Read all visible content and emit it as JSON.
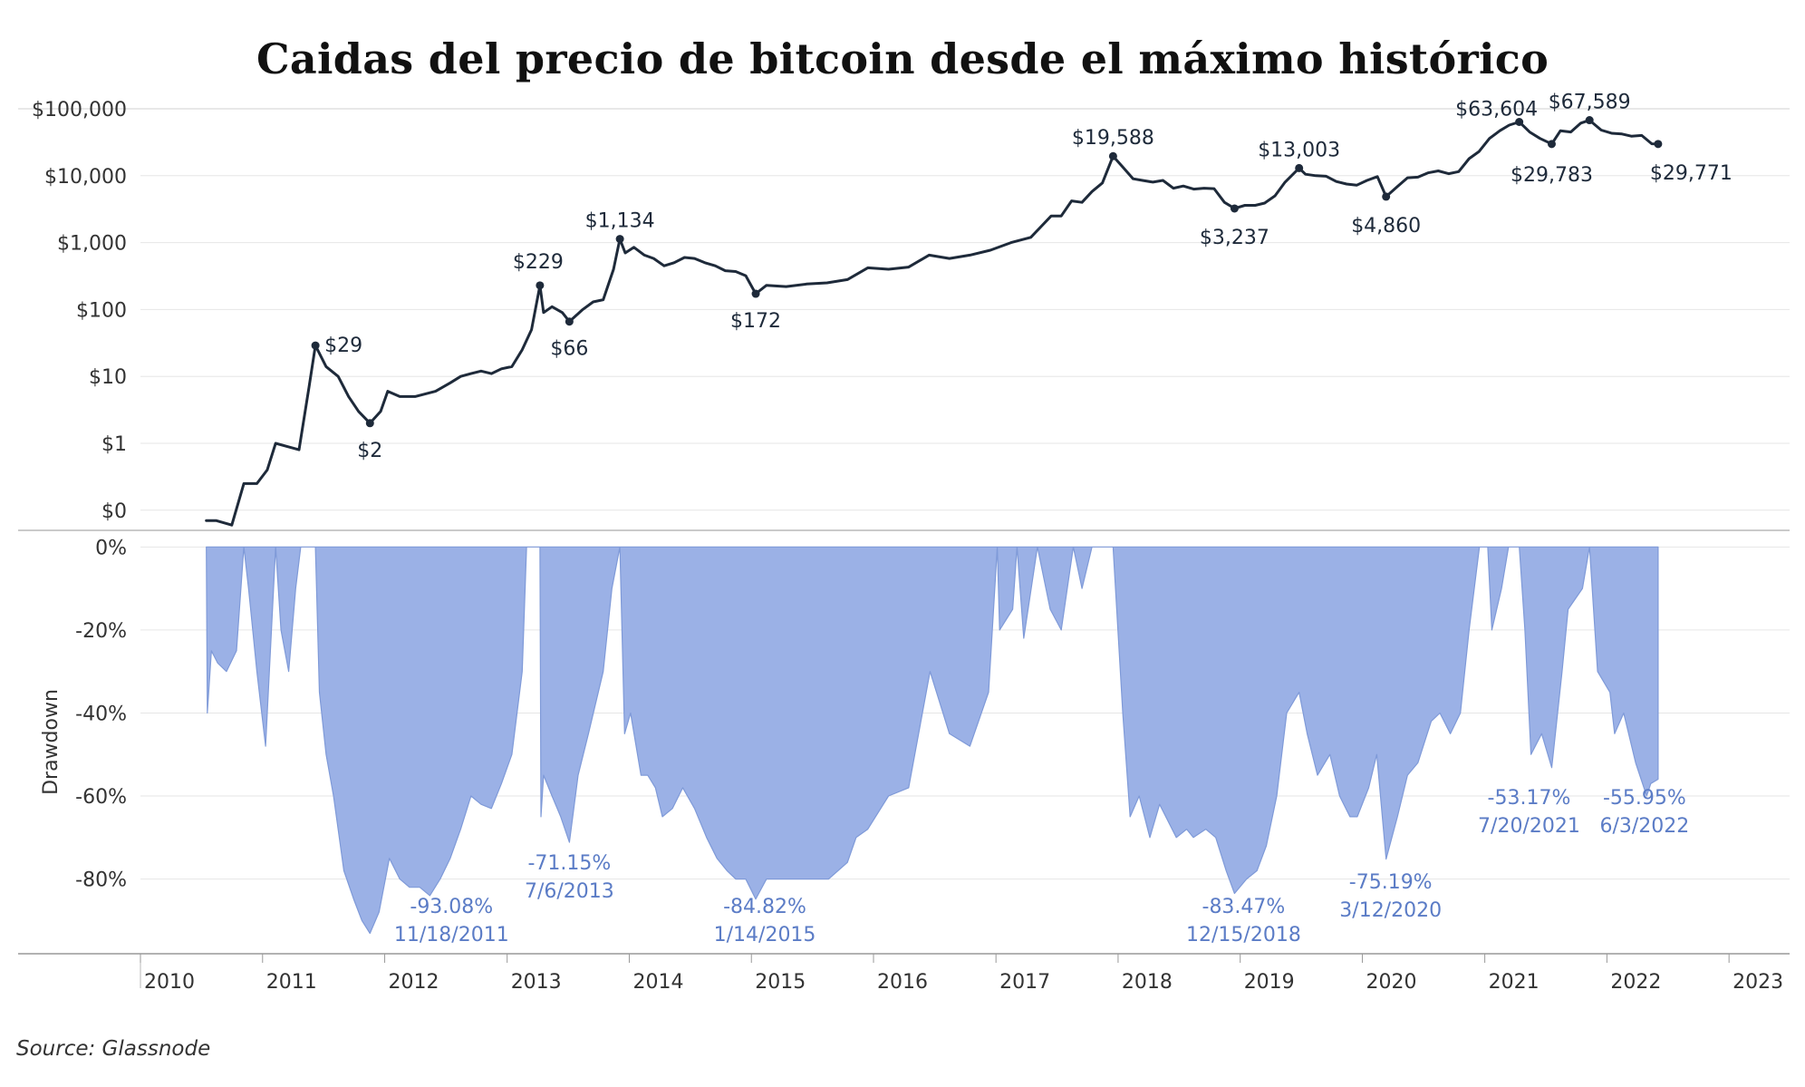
{
  "title": "Caidas del precio de bitcoin desde el máximo histórico",
  "source": "Source: Glassnode",
  "colors": {
    "price_line": "#1e2a3a",
    "drawdown_fill": "#9bb1e6",
    "drawdown_stroke": "#7f9ad8",
    "annotation_blue": "#5b7cc6",
    "grid": "#e6e6e6"
  },
  "chart_data": [
    {
      "type": "line",
      "title": "",
      "xlabel": "",
      "ylabel": "",
      "y_scale": "log",
      "ylim": [
        0.05,
        100000
      ],
      "y_ticks": [
        {
          "value": 100000,
          "label": "$100,000"
        },
        {
          "value": 10000,
          "label": "$10,000"
        },
        {
          "value": 1000,
          "label": "$1,000"
        },
        {
          "value": 100,
          "label": "$100"
        },
        {
          "value": 10,
          "label": "$10"
        },
        {
          "value": 1,
          "label": "$1"
        },
        {
          "value": 0.1,
          "label": "$0"
        }
      ],
      "grid": true,
      "series": [
        {
          "x": [
            "2010-07-17",
            "2010-08-15",
            "2010-10-01",
            "2010-11-06",
            "2010-12-15",
            "2011-01-15",
            "2011-02-09",
            "2011-03-15",
            "2011-04-20",
            "2011-05-20",
            "2011-06-08",
            "2011-07-10",
            "2011-08-15",
            "2011-09-15",
            "2011-10-15",
            "2011-11-18",
            "2011-12-20",
            "2012-01-10",
            "2012-02-15",
            "2012-04-01",
            "2012-06-01",
            "2012-07-15",
            "2012-08-15",
            "2012-09-15",
            "2012-10-15",
            "2012-11-15",
            "2012-12-15",
            "2013-01-15",
            "2013-02-15",
            "2013-03-15",
            "2013-04-09",
            "2013-04-20",
            "2013-05-15",
            "2013-06-15",
            "2013-07-06",
            "2013-08-15",
            "2013-09-15",
            "2013-10-15",
            "2013-11-15",
            "2013-12-04",
            "2013-12-20",
            "2014-01-15",
            "2014-02-15",
            "2014-03-15",
            "2014-04-15",
            "2014-05-15",
            "2014-06-15",
            "2014-07-15",
            "2014-08-15",
            "2014-09-15",
            "2014-10-15",
            "2014-11-15",
            "2014-12-15",
            "2015-01-14",
            "2015-02-15",
            "2015-04-15",
            "2015-06-15",
            "2015-08-15",
            "2015-10-15",
            "2015-12-15",
            "2016-02-15",
            "2016-04-15",
            "2016-06-15",
            "2016-08-15",
            "2016-10-15",
            "2016-12-15",
            "2017-02-15",
            "2017-04-15",
            "2017-06-15",
            "2017-07-15",
            "2017-08-15",
            "2017-09-15",
            "2017-10-15",
            "2017-11-15",
            "2017-12-17",
            "2018-01-15",
            "2018-02-15",
            "2018-03-15",
            "2018-04-15",
            "2018-05-15",
            "2018-06-15",
            "2018-07-15",
            "2018-08-15",
            "2018-09-15",
            "2018-10-15",
            "2018-11-15",
            "2018-12-15",
            "2019-01-15",
            "2019-02-15",
            "2019-03-15",
            "2019-04-15",
            "2019-05-15",
            "2019-06-26",
            "2019-07-15",
            "2019-08-15",
            "2019-09-15",
            "2019-10-15",
            "2019-11-15",
            "2019-12-15",
            "2020-01-15",
            "2020-02-15",
            "2020-03-12",
            "2020-04-15",
            "2020-05-15",
            "2020-06-15",
            "2020-07-15",
            "2020-08-15",
            "2020-09-15",
            "2020-10-15",
            "2020-11-15",
            "2020-12-15",
            "2021-01-15",
            "2021-02-15",
            "2021-03-15",
            "2021-04-14",
            "2021-05-15",
            "2021-06-15",
            "2021-07-20",
            "2021-08-15",
            "2021-09-15",
            "2021-10-15",
            "2021-11-10",
            "2021-12-15",
            "2022-01-15",
            "2022-02-15",
            "2022-03-15",
            "2022-04-15",
            "2022-05-15",
            "2022-06-03"
          ],
          "values": [
            0.07,
            0.07,
            0.06,
            0.25,
            0.25,
            0.4,
            1.0,
            0.9,
            0.8,
            7,
            29,
            14,
            10,
            5,
            3,
            2,
            3,
            6,
            5,
            5,
            6,
            8,
            10,
            11,
            12,
            11,
            13,
            14,
            25,
            50,
            229,
            90,
            110,
            90,
            66,
            100,
            130,
            140,
            400,
            1134,
            700,
            850,
            650,
            580,
            450,
            500,
            600,
            580,
            500,
            450,
            380,
            370,
            320,
            172,
            230,
            220,
            240,
            250,
            280,
            420,
            400,
            430,
            650,
            580,
            650,
            770,
            1000,
            1200,
            2500,
            2500,
            4200,
            4000,
            5800,
            7800,
            19588,
            13500,
            9000,
            8500,
            8000,
            8500,
            6500,
            7000,
            6300,
            6500,
            6400,
            4000,
            3237,
            3600,
            3600,
            3900,
            5000,
            8000,
            13003,
            10500,
            10000,
            9800,
            8200,
            7500,
            7200,
            8500,
            9700,
            4860,
            6900,
            9300,
            9500,
            11000,
            11800,
            10700,
            11500,
            18000,
            23000,
            36000,
            47000,
            57000,
            63604,
            45000,
            36000,
            29783,
            47000,
            45000,
            61000,
            67589,
            48000,
            43000,
            42000,
            39000,
            40000,
            30000,
            29771
          ]
        }
      ],
      "annotations": [
        {
          "x": "2011-06-08",
          "y": 29,
          "label": "$29"
        },
        {
          "x": "2011-11-18",
          "y": 2,
          "label": "$2"
        },
        {
          "x": "2013-04-09",
          "y": 229,
          "label": "$229"
        },
        {
          "x": "2013-07-06",
          "y": 66,
          "label": "$66"
        },
        {
          "x": "2013-12-04",
          "y": 1134,
          "label": "$1,134"
        },
        {
          "x": "2015-01-14",
          "y": 172,
          "label": "$172"
        },
        {
          "x": "2017-12-17",
          "y": 19588,
          "label": "$19,588"
        },
        {
          "x": "2018-12-15",
          "y": 3237,
          "label": "$3,237"
        },
        {
          "x": "2019-06-26",
          "y": 13003,
          "label": "$13,003"
        },
        {
          "x": "2020-03-12",
          "y": 4860,
          "label": "$4,860"
        },
        {
          "x": "2021-04-14",
          "y": 63604,
          "label": "$63,604"
        },
        {
          "x": "2021-07-20",
          "y": 29783,
          "label": "$29,783"
        },
        {
          "x": "2021-11-10",
          "y": 67589,
          "label": "$67,589"
        },
        {
          "x": "2022-06-03",
          "y": 29771,
          "label": "$29,771"
        }
      ]
    },
    {
      "type": "area",
      "title": "",
      "xlabel": "",
      "ylabel": "Drawdown",
      "ylim": [
        -98,
        4
      ],
      "y_ticks": [
        {
          "value": 0,
          "label": "0%"
        },
        {
          "value": -20,
          "label": "-20%"
        },
        {
          "value": -40,
          "label": "-40%"
        },
        {
          "value": -60,
          "label": "-60%"
        },
        {
          "value": -80,
          "label": "-80%"
        }
      ],
      "grid": true,
      "series": [
        {
          "x": [
            "2010-07-17",
            "2010-07-20",
            "2010-08-01",
            "2010-08-20",
            "2010-09-15",
            "2010-10-15",
            "2010-11-06",
            "2010-11-20",
            "2010-12-15",
            "2011-01-10",
            "2011-02-09",
            "2011-02-25",
            "2011-03-20",
            "2011-04-10",
            "2011-04-25",
            "2011-06-08",
            "2011-06-20",
            "2011-07-10",
            "2011-08-01",
            "2011-09-01",
            "2011-10-01",
            "2011-10-25",
            "2011-11-18",
            "2011-12-15",
            "2012-01-15",
            "2012-02-15",
            "2012-03-15",
            "2012-04-15",
            "2012-05-15",
            "2012-06-15",
            "2012-07-15",
            "2012-08-15",
            "2012-09-15",
            "2012-10-15",
            "2012-11-15",
            "2012-12-15",
            "2013-01-15",
            "2013-02-15",
            "2013-02-28",
            "2013-04-09",
            "2013-04-12",
            "2013-04-20",
            "2013-05-15",
            "2013-06-10",
            "2013-07-06",
            "2013-08-01",
            "2013-09-01",
            "2013-10-15",
            "2013-11-10",
            "2013-12-04",
            "2013-12-18",
            "2014-01-05",
            "2014-02-05",
            "2014-02-25",
            "2014-03-20",
            "2014-04-10",
            "2014-05-10",
            "2014-06-10",
            "2014-07-15",
            "2014-08-20",
            "2014-09-20",
            "2014-10-20",
            "2014-11-15",
            "2014-12-15",
            "2015-01-14",
            "2015-02-15",
            "2015-04-15",
            "2015-06-15",
            "2015-08-20",
            "2015-10-15",
            "2015-11-10",
            "2015-12-15",
            "2016-02-15",
            "2016-04-15",
            "2016-06-18",
            "2016-08-15",
            "2016-10-15",
            "2016-12-10",
            "2017-01-05",
            "2017-01-12",
            "2017-02-20",
            "2017-03-05",
            "2017-03-25",
            "2017-05-05",
            "2017-06-12",
            "2017-07-15",
            "2017-08-20",
            "2017-09-15",
            "2017-10-15",
            "2017-11-12",
            "2017-12-17",
            "2018-01-15",
            "2018-02-06",
            "2018-03-05",
            "2018-04-06",
            "2018-05-05",
            "2018-06-24",
            "2018-07-25",
            "2018-08-14",
            "2018-09-20",
            "2018-10-20",
            "2018-11-20",
            "2018-12-15",
            "2019-01-20",
            "2019-02-20",
            "2019-03-20",
            "2019-04-20",
            "2019-05-20",
            "2019-06-26",
            "2019-07-20",
            "2019-08-20",
            "2019-09-26",
            "2019-10-25",
            "2019-11-25",
            "2019-12-17",
            "2020-01-20",
            "2020-02-13",
            "2020-03-12",
            "2020-04-15",
            "2020-05-15",
            "2020-06-15",
            "2020-07-25",
            "2020-08-20",
            "2020-09-20",
            "2020-10-20",
            "2020-11-15",
            "2020-12-16",
            "2021-01-10",
            "2021-01-22",
            "2021-02-20",
            "2021-03-13",
            "2021-04-14",
            "2021-05-01",
            "2021-05-19",
            "2021-06-20",
            "2021-07-20",
            "2021-08-20",
            "2021-09-07",
            "2021-10-20",
            "2021-11-10",
            "2021-12-04",
            "2022-01-10",
            "2022-01-24",
            "2022-02-20",
            "2022-03-28",
            "2022-04-30",
            "2022-05-12",
            "2022-06-03"
          ],
          "values": [
            0,
            -40,
            -25,
            -28,
            -30,
            -25,
            0,
            -10,
            -30,
            -48,
            0,
            -20,
            -30,
            -10,
            0,
            0,
            -35,
            -50,
            -60,
            -78,
            -85,
            -90,
            -93.08,
            -88,
            -75,
            -80,
            -82,
            -82,
            -84,
            -80,
            -75,
            -68,
            -60,
            -62,
            -63,
            -57,
            -50,
            -30,
            0,
            0,
            -65,
            -55,
            -60,
            -65,
            -71.15,
            -55,
            -45,
            -30,
            -10,
            0,
            -45,
            -40,
            -55,
            -55,
            -58,
            -65,
            -63,
            -58,
            -63,
            -70,
            -75,
            -78,
            -80,
            -80,
            -84.82,
            -80,
            -80,
            -80,
            -80,
            -76,
            -70,
            -68,
            -60,
            -58,
            -30,
            -45,
            -48,
            -35,
            0,
            -20,
            -15,
            0,
            -22,
            0,
            -15,
            -20,
            0,
            -10,
            0,
            0,
            0,
            -40,
            -65,
            -60,
            -70,
            -62,
            -70,
            -68,
            -70,
            -68,
            -70,
            -78,
            -83.47,
            -80,
            -78,
            -72,
            -60,
            -40,
            -35,
            -45,
            -55,
            -50,
            -60,
            -65,
            -65,
            -58,
            -50,
            -75.19,
            -65,
            -55,
            -52,
            -42,
            -40,
            -45,
            -40,
            -20,
            0,
            0,
            -20,
            -10,
            0,
            0,
            -20,
            -50,
            -45,
            -53.17,
            -30,
            -15,
            -10,
            0,
            -30,
            -35,
            -45,
            -40,
            -52,
            -60,
            -57,
            -55.95
          ]
        }
      ],
      "annotations": [
        {
          "x": "2011-11-18",
          "y": -93.08,
          "pct": "-93.08%",
          "date": "11/18/2011"
        },
        {
          "x": "2013-07-06",
          "y": -71.15,
          "pct": "-71.15%",
          "date": "7/6/2013"
        },
        {
          "x": "2015-01-14",
          "y": -84.82,
          "pct": "-84.82%",
          "date": "1/14/2015"
        },
        {
          "x": "2018-12-15",
          "y": -83.47,
          "pct": "-83.47%",
          "date": "12/15/2018"
        },
        {
          "x": "2020-03-12",
          "y": -75.19,
          "pct": "-75.19%",
          "date": "3/12/2020"
        },
        {
          "x": "2021-07-20",
          "y": -53.17,
          "pct": "-53.17%",
          "date": "7/20/2021"
        },
        {
          "x": "2022-06-03",
          "y": -55.95,
          "pct": "-55.95%",
          "date": "6/3/2022"
        }
      ]
    }
  ],
  "x_axis": {
    "xlim": [
      "2010-01-01",
      "2023-07-01"
    ],
    "years": [
      "2010",
      "2011",
      "2012",
      "2013",
      "2014",
      "2015",
      "2016",
      "2017",
      "2018",
      "2019",
      "2020",
      "2021",
      "2022",
      "2023"
    ]
  }
}
